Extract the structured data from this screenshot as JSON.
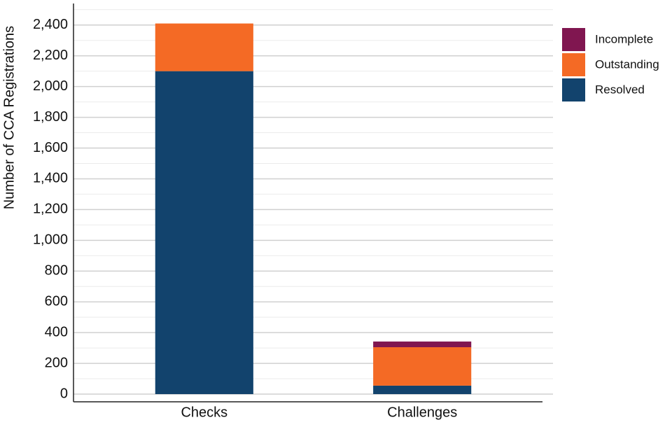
{
  "chart_data": {
    "type": "stacked_bar",
    "y_label": "Number of CCA Registrations",
    "categories": [
      "Checks",
      "Challenges"
    ],
    "series": [
      {
        "name": "Resolved",
        "color": "#12436d",
        "values": [
          2100,
          55
        ]
      },
      {
        "name": "Outstanding",
        "color": "#f46a25",
        "values": [
          310,
          250
        ]
      },
      {
        "name": "Incomplete",
        "color": "#801650",
        "values": [
          0,
          37
        ]
      }
    ],
    "ylim": [
      -50,
      2540
    ],
    "yticks": [
      0,
      200,
      400,
      600,
      800,
      {
        "value": 1000,
        "label": "1,000"
      },
      {
        "value": 1200,
        "label": "1,200"
      },
      {
        "value": 1400,
        "label": "1,400"
      },
      {
        "value": 1600,
        "label": "1,600"
      },
      {
        "value": 1800,
        "label": "1,800"
      },
      {
        "value": 2000,
        "label": "2,000"
      },
      {
        "value": 2200,
        "label": "2,200"
      },
      {
        "value": 2400,
        "label": "2,400"
      }
    ],
    "yminor": [
      100,
      300,
      500,
      700,
      900,
      1100,
      1300,
      1500,
      1700,
      1900,
      2100,
      2300,
      2500
    ],
    "grid": true,
    "legend": "right"
  }
}
